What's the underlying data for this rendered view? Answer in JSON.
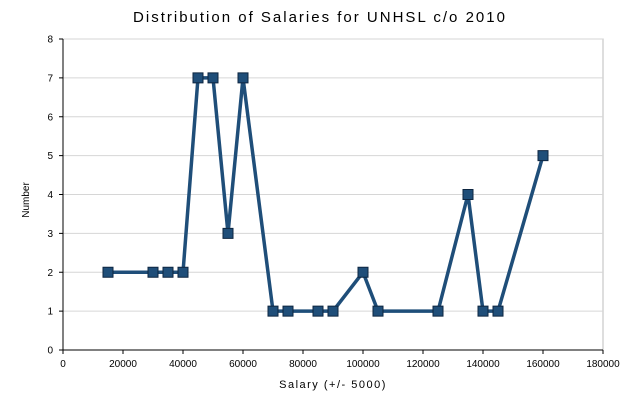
{
  "chart_data": {
    "type": "line",
    "title": "Distribution of Salaries for UNHSL c/o 2010",
    "xlabel": "Salary (+/- 5000)",
    "ylabel": "Number",
    "xlim": [
      0,
      180000
    ],
    "ylim": [
      0,
      8
    ],
    "x_ticks": [
      0,
      20000,
      40000,
      60000,
      80000,
      100000,
      120000,
      140000,
      160000,
      180000
    ],
    "y_ticks": [
      0,
      1,
      2,
      3,
      4,
      5,
      6,
      7,
      8
    ],
    "grid": "horizontal",
    "legend": "none",
    "series": [
      {
        "marker": "square",
        "color": "#1f4e79",
        "x": [
          15000,
          30000,
          35000,
          40000,
          45000,
          50000,
          55000,
          60000,
          70000,
          75000,
          85000,
          90000,
          100000,
          105000,
          125000,
          135000,
          140000,
          145000,
          160000
        ],
        "y": [
          2,
          2,
          2,
          2,
          7,
          7,
          3,
          7,
          1,
          1,
          1,
          1,
          2,
          1,
          1,
          4,
          1,
          1,
          5
        ]
      }
    ]
  },
  "colors": {
    "line": "#1f4e79",
    "marker_fill": "#1f4e79",
    "marker_edge": "#0d2540",
    "grid": "#d6d6d6",
    "background": "#ffffff"
  }
}
